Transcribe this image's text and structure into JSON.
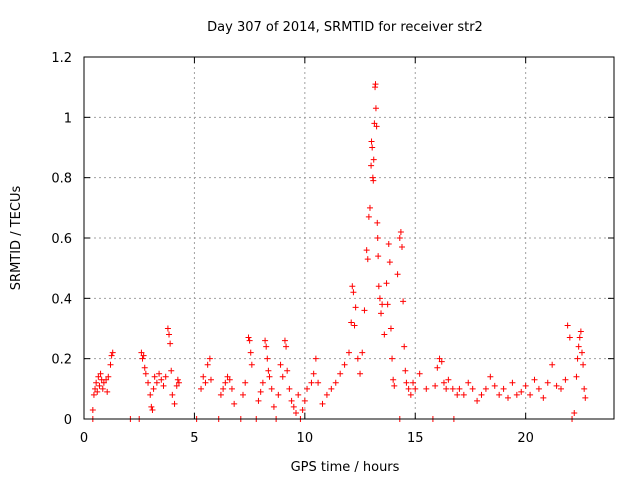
{
  "chart_data": {
    "type": "scatter",
    "title": "Day 307 of 2014, SRMTID for receiver str2",
    "xlabel": "GPS time / hours",
    "ylabel": "SRMTID / TECUs",
    "xlim": [
      0,
      24
    ],
    "ylim": [
      0,
      1.2
    ],
    "xticks": [
      0,
      5,
      10,
      15,
      20
    ],
    "yticks": [
      0,
      0.2,
      0.4,
      0.6,
      0.8,
      1,
      1.2
    ],
    "xtick_labels": [
      "0",
      "5",
      "10",
      "15",
      "20"
    ],
    "ytick_labels": [
      "0",
      "0.2",
      "0.4",
      "0.6",
      "0.8",
      "1",
      "1.2"
    ],
    "grid": true,
    "marker": "plus",
    "series": [
      {
        "name": "SRMTID",
        "color": "#ff0000",
        "points": [
          [
            0.4,
            0.03
          ],
          [
            0.45,
            0.08
          ],
          [
            0.5,
            0.1
          ],
          [
            0.55,
            0.12
          ],
          [
            0.6,
            0.09
          ],
          [
            0.65,
            0.14
          ],
          [
            0.7,
            0.11
          ],
          [
            0.75,
            0.15
          ],
          [
            0.8,
            0.13
          ],
          [
            0.85,
            0.1
          ],
          [
            0.9,
            0.12
          ],
          [
            1.0,
            0.13
          ],
          [
            1.05,
            0.09
          ],
          [
            1.1,
            0.14
          ],
          [
            1.2,
            0.18
          ],
          [
            1.25,
            0.21
          ],
          [
            1.3,
            0.22
          ],
          [
            0.4,
            0.0
          ],
          [
            2.1,
            0.0
          ],
          [
            2.5,
            0.0
          ],
          [
            2.6,
            0.22
          ],
          [
            2.65,
            0.2
          ],
          [
            2.7,
            0.21
          ],
          [
            2.75,
            0.17
          ],
          [
            2.8,
            0.15
          ],
          [
            2.9,
            0.12
          ],
          [
            3.0,
            0.08
          ],
          [
            3.05,
            0.04
          ],
          [
            3.1,
            0.03
          ],
          [
            3.15,
            0.1
          ],
          [
            3.2,
            0.14
          ],
          [
            3.3,
            0.12
          ],
          [
            3.4,
            0.15
          ],
          [
            3.5,
            0.13
          ],
          [
            3.6,
            0.11
          ],
          [
            3.7,
            0.14
          ],
          [
            3.8,
            0.3
          ],
          [
            3.85,
            0.28
          ],
          [
            3.9,
            0.25
          ],
          [
            3.95,
            0.16
          ],
          [
            4.0,
            0.08
          ],
          [
            4.1,
            0.05
          ],
          [
            4.2,
            0.11
          ],
          [
            4.25,
            0.13
          ],
          [
            4.3,
            0.12
          ],
          [
            5.1,
            0.0
          ],
          [
            5.3,
            0.1
          ],
          [
            5.4,
            0.14
          ],
          [
            5.5,
            0.12
          ],
          [
            5.6,
            0.18
          ],
          [
            5.7,
            0.2
          ],
          [
            5.75,
            0.13
          ],
          [
            6.1,
            0.0
          ],
          [
            6.2,
            0.08
          ],
          [
            6.3,
            0.1
          ],
          [
            6.4,
            0.12
          ],
          [
            6.5,
            0.14
          ],
          [
            6.6,
            0.13
          ],
          [
            6.7,
            0.1
          ],
          [
            6.8,
            0.05
          ],
          [
            7.1,
            0.0
          ],
          [
            7.2,
            0.08
          ],
          [
            7.3,
            0.12
          ],
          [
            7.45,
            0.27
          ],
          [
            7.5,
            0.26
          ],
          [
            7.55,
            0.22
          ],
          [
            7.6,
            0.18
          ],
          [
            7.8,
            0.0
          ],
          [
            7.9,
            0.06
          ],
          [
            8.0,
            0.09
          ],
          [
            8.1,
            0.12
          ],
          [
            8.2,
            0.26
          ],
          [
            8.25,
            0.24
          ],
          [
            8.3,
            0.2
          ],
          [
            8.35,
            0.16
          ],
          [
            8.4,
            0.14
          ],
          [
            8.5,
            0.1
          ],
          [
            8.6,
            0.04
          ],
          [
            8.7,
            0.0
          ],
          [
            8.8,
            0.08
          ],
          [
            8.9,
            0.18
          ],
          [
            9.0,
            0.14
          ],
          [
            9.1,
            0.26
          ],
          [
            9.15,
            0.24
          ],
          [
            9.2,
            0.16
          ],
          [
            9.3,
            0.1
          ],
          [
            9.4,
            0.06
          ],
          [
            9.5,
            0.04
          ],
          [
            9.6,
            0.02
          ],
          [
            9.7,
            0.08
          ],
          [
            9.8,
            0.0
          ],
          [
            9.9,
            0.03
          ],
          [
            10.0,
            0.06
          ],
          [
            10.1,
            0.1
          ],
          [
            10.3,
            0.12
          ],
          [
            10.4,
            0.15
          ],
          [
            10.5,
            0.2
          ],
          [
            10.6,
            0.12
          ],
          [
            10.8,
            0.05
          ],
          [
            11.0,
            0.08
          ],
          [
            11.2,
            0.1
          ],
          [
            11.4,
            0.12
          ],
          [
            11.6,
            0.15
          ],
          [
            11.8,
            0.18
          ],
          [
            12.0,
            0.22
          ],
          [
            12.1,
            0.32
          ],
          [
            12.15,
            0.44
          ],
          [
            12.2,
            0.42
          ],
          [
            12.25,
            0.31
          ],
          [
            12.3,
            0.37
          ],
          [
            12.4,
            0.2
          ],
          [
            12.5,
            0.15
          ],
          [
            12.6,
            0.22
          ],
          [
            12.7,
            0.36
          ],
          [
            12.8,
            0.56
          ],
          [
            12.85,
            0.53
          ],
          [
            12.9,
            0.67
          ],
          [
            12.95,
            0.7
          ],
          [
            13.0,
            0.84
          ],
          [
            13.02,
            0.92
          ],
          [
            13.05,
            0.9
          ],
          [
            13.08,
            0.8
          ],
          [
            13.1,
            0.79
          ],
          [
            13.12,
            0.86
          ],
          [
            13.15,
            0.98
          ],
          [
            13.18,
            1.1
          ],
          [
            13.2,
            1.11
          ],
          [
            13.22,
            1.03
          ],
          [
            13.25,
            0.97
          ],
          [
            13.28,
            0.65
          ],
          [
            13.3,
            0.6
          ],
          [
            13.32,
            0.54
          ],
          [
            13.35,
            0.44
          ],
          [
            13.4,
            0.4
          ],
          [
            13.45,
            0.35
          ],
          [
            13.5,
            0.38
          ],
          [
            13.6,
            0.28
          ],
          [
            13.7,
            0.45
          ],
          [
            13.75,
            0.38
          ],
          [
            13.8,
            0.58
          ],
          [
            13.85,
            0.52
          ],
          [
            13.9,
            0.3
          ],
          [
            13.95,
            0.2
          ],
          [
            14.0,
            0.13
          ],
          [
            14.05,
            0.11
          ],
          [
            14.2,
            0.48
          ],
          [
            14.3,
            0.6
          ],
          [
            14.35,
            0.62
          ],
          [
            14.4,
            0.57
          ],
          [
            14.45,
            0.39
          ],
          [
            14.5,
            0.24
          ],
          [
            14.55,
            0.16
          ],
          [
            14.6,
            0.12
          ],
          [
            14.7,
            0.1
          ],
          [
            14.8,
            0.08
          ],
          [
            14.9,
            0.12
          ],
          [
            15.0,
            0.1
          ],
          [
            15.2,
            0.15
          ],
          [
            15.5,
            0.1
          ],
          [
            14.3,
            0.0
          ],
          [
            15.8,
            0.0
          ],
          [
            15.9,
            0.11
          ],
          [
            16.0,
            0.17
          ],
          [
            16.1,
            0.2
          ],
          [
            16.2,
            0.19
          ],
          [
            16.3,
            0.12
          ],
          [
            16.4,
            0.1
          ],
          [
            16.5,
            0.13
          ],
          [
            16.7,
            0.1
          ],
          [
            16.75,
            0.0
          ],
          [
            16.9,
            0.08
          ],
          [
            17.0,
            0.1
          ],
          [
            17.2,
            0.08
          ],
          [
            17.4,
            0.12
          ],
          [
            17.6,
            0.1
          ],
          [
            17.8,
            0.06
          ],
          [
            18.0,
            0.08
          ],
          [
            18.2,
            0.1
          ],
          [
            18.4,
            0.14
          ],
          [
            18.6,
            0.11
          ],
          [
            18.8,
            0.08
          ],
          [
            19.0,
            0.1
          ],
          [
            19.2,
            0.07
          ],
          [
            19.4,
            0.12
          ],
          [
            19.6,
            0.08
          ],
          [
            19.8,
            0.09
          ],
          [
            20.0,
            0.11
          ],
          [
            20.2,
            0.08
          ],
          [
            20.4,
            0.13
          ],
          [
            20.6,
            0.1
          ],
          [
            20.8,
            0.07
          ],
          [
            21.0,
            0.12
          ],
          [
            21.2,
            0.18
          ],
          [
            21.4,
            0.11
          ],
          [
            21.6,
            0.1
          ],
          [
            21.8,
            0.13
          ],
          [
            21.9,
            0.31
          ],
          [
            22.0,
            0.27
          ],
          [
            22.1,
            0.0
          ],
          [
            22.2,
            0.02
          ],
          [
            22.3,
            0.14
          ],
          [
            22.35,
            0.2
          ],
          [
            22.4,
            0.24
          ],
          [
            22.45,
            0.27
          ],
          [
            22.5,
            0.29
          ],
          [
            22.55,
            0.22
          ],
          [
            22.6,
            0.18
          ],
          [
            22.65,
            0.1
          ],
          [
            22.7,
            0.07
          ]
        ]
      }
    ]
  }
}
